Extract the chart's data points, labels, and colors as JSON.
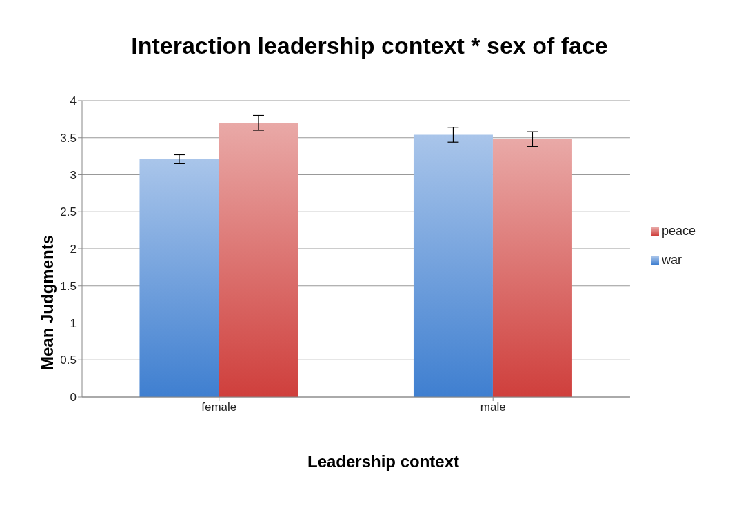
{
  "chart_data": {
    "type": "bar",
    "title": "Interaction leadership context * sex of face",
    "xlabel": "Leadership context",
    "ylabel": "Mean Judgments",
    "categories": [
      "female",
      "male"
    ],
    "series": [
      {
        "name": "war",
        "color": "#3f7fd0",
        "values": [
          3.21,
          3.54
        ],
        "errors": [
          0.06,
          0.1
        ]
      },
      {
        "name": "peace",
        "color": "#cf3f3c",
        "values": [
          3.7,
          3.48
        ],
        "errors": [
          0.1,
          0.1
        ]
      }
    ],
    "ylim": [
      0,
      4
    ],
    "yticks": [
      0,
      0.5,
      1,
      1.5,
      2,
      2.5,
      3,
      3.5,
      4
    ],
    "grid": "y",
    "legend": "right"
  }
}
